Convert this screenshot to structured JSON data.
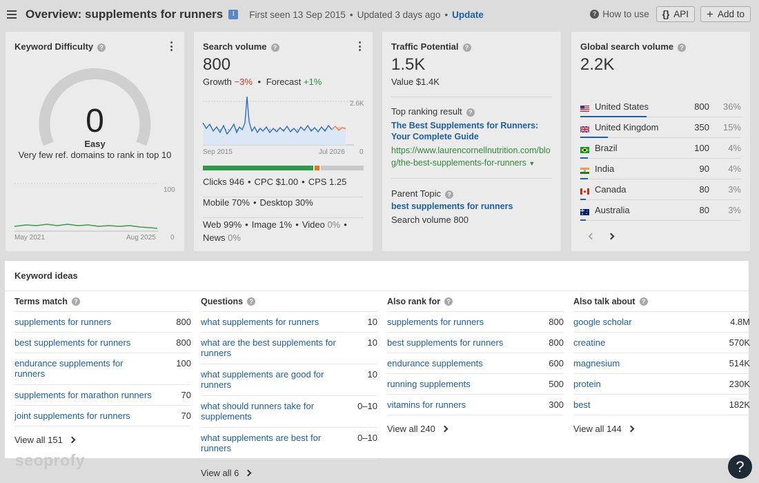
{
  "header": {
    "title": "Overview: supplements for runners",
    "badge": "I",
    "first_seen": "First seen 13 Sep 2015",
    "updated": "Updated 3 days ago",
    "update_link": "Update",
    "how_to_use": "How to use",
    "api_label": "API",
    "add_to_label": "Add to"
  },
  "kd": {
    "title": "Keyword Difficulty",
    "value": "0",
    "level": "Easy",
    "description": "Very few ref. domains to rank in top 10",
    "gauge_fraction": 0.0,
    "chart": {
      "y_max_label": "100",
      "y_min_label": "0",
      "x_start": "May 2021",
      "x_end": "Aug 2025"
    }
  },
  "sv": {
    "title": "Search volume",
    "value": "800",
    "growth_label": "Growth",
    "growth_value": "−3%",
    "forecast_label": "Forecast",
    "forecast_value": "+1%",
    "chart": {
      "y_max_label": "2.6K",
      "y_min_label": "0",
      "x_start": "Sep 2015",
      "x_end": "Jul 2026"
    },
    "clicks": "Clicks 946",
    "cpc": "CPC $1.00",
    "cps": "CPS 1.25",
    "mobile": "Mobile 70%",
    "desktop": "Desktop 30%",
    "web": "Web 99%",
    "image": "Image 1%",
    "video_label": "Video",
    "video_value": "0%",
    "news_label": "News",
    "news_value": "0%",
    "click_split": {
      "green": 0.7,
      "orange": 0.03,
      "gray": 0.27
    }
  },
  "tp": {
    "title": "Traffic Potential",
    "value": "1.5K",
    "value_usd": "Value $1.4K",
    "top_result_label": "Top ranking result",
    "top_result_title": "The Best Supplements for Runners: Your Complete Guide",
    "top_result_url": "https://www.laurencornellnutrition.com/blog/the-best-supplements-for-runners",
    "parent_topic_label": "Parent Topic",
    "parent_topic": "best supplements for runners",
    "parent_volume": "Search volume 800"
  },
  "gsv": {
    "title": "Global search volume",
    "value": "2.2K",
    "countries": [
      {
        "name": "United States",
        "value": "800",
        "pct": "36%",
        "share": 0.36,
        "flag": "us-flag-icon"
      },
      {
        "name": "United Kingdom",
        "value": "350",
        "pct": "15%",
        "share": 0.15,
        "flag": "uk-flag-icon"
      },
      {
        "name": "Brazil",
        "value": "100",
        "pct": "4%",
        "share": 0.04,
        "flag": "brazil-flag-icon"
      },
      {
        "name": "India",
        "value": "90",
        "pct": "4%",
        "share": 0.04,
        "flag": "india-flag-icon"
      },
      {
        "name": "Canada",
        "value": "80",
        "pct": "3%",
        "share": 0.03,
        "flag": "canada-flag-icon"
      },
      {
        "name": "Australia",
        "value": "80",
        "pct": "3%",
        "share": 0.03,
        "flag": "australia-flag-icon"
      }
    ]
  },
  "ideas": {
    "title": "Keyword ideas",
    "terms": {
      "header": "Terms match",
      "rows": [
        {
          "label": "supplements for runners",
          "value": "800"
        },
        {
          "label": "best supplements for runners",
          "value": "800"
        },
        {
          "label": "endurance supplements for runners",
          "value": "100"
        },
        {
          "label": "supplements for marathon runners",
          "value": "70"
        },
        {
          "label": "joint supplements for runners",
          "value": "70"
        }
      ],
      "view_all": "View all 151"
    },
    "questions": {
      "header": "Questions",
      "rows": [
        {
          "label": "what supplements for runners",
          "value": "10"
        },
        {
          "label": "what are the best supplements for runners",
          "value": "10"
        },
        {
          "label": "what supplements are good for runners",
          "value": "10"
        },
        {
          "label": "what should runners take for supplements",
          "value": "0–10"
        },
        {
          "label": "what supplements are best for runners",
          "value": "0–10"
        }
      ],
      "view_all": "View all 6"
    },
    "also_rank": {
      "header": "Also rank for",
      "rows": [
        {
          "label": "supplements for runners",
          "value": "800"
        },
        {
          "label": "best supplements for runners",
          "value": "800"
        },
        {
          "label": "endurance supplements",
          "value": "600"
        },
        {
          "label": "running supplements",
          "value": "500"
        },
        {
          "label": "vitamins for runners",
          "value": "300"
        }
      ],
      "view_all": "View all 240"
    },
    "also_talk": {
      "header": "Also talk about",
      "rows": [
        {
          "label": "google scholar",
          "value": "4.8M"
        },
        {
          "label": "creatine",
          "value": "570K"
        },
        {
          "label": "magnesium",
          "value": "514K"
        },
        {
          "label": "protein",
          "value": "230K"
        },
        {
          "label": "best",
          "value": "182K"
        }
      ],
      "view_all": "View all 144"
    }
  },
  "watermark": "seoprofy",
  "help_fab": "?",
  "colors": {
    "link": "#1b5fa8",
    "negative": "#d9342b",
    "positive": "#2e8b3a",
    "bar_green": "#2f9a48",
    "bar_orange": "#e5731f",
    "bar_gray": "#c9c9c9"
  }
}
